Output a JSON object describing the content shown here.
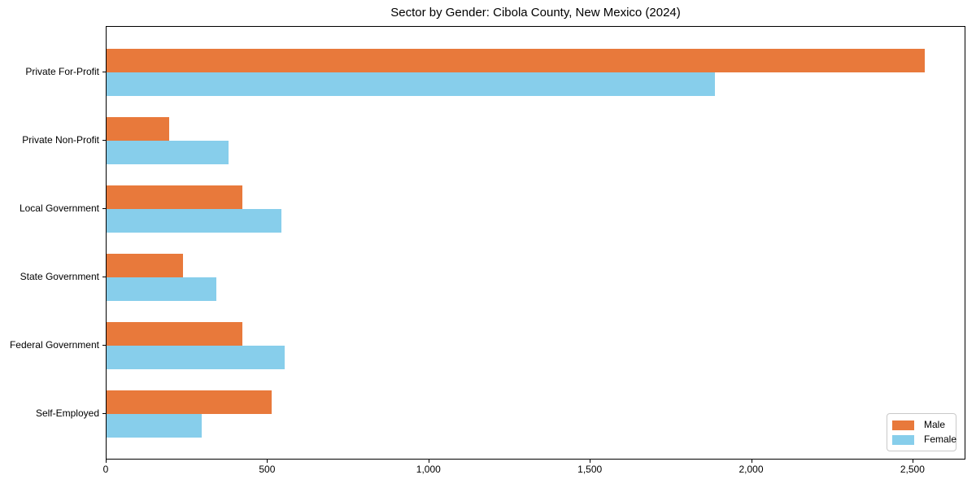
{
  "chart_data": {
    "type": "bar",
    "orientation": "horizontal",
    "title": "Sector by Gender: Cibola County, New Mexico (2024)",
    "categories": [
      "Private For-Profit",
      "Private Non-Profit",
      "Local Government",
      "State Government",
      "Federal Government",
      "Self-Employed"
    ],
    "series": [
      {
        "name": "Male",
        "color": "#e8793b",
        "values": [
          2536,
          193,
          422,
          236,
          421,
          511
        ]
      },
      {
        "name": "Female",
        "color": "#87ceeb",
        "values": [
          1885,
          377,
          541,
          340,
          551,
          294
        ]
      }
    ],
    "xlabel": "",
    "ylabel": "",
    "xlim": [
      0,
      2664
    ],
    "xticks": [
      0,
      500,
      1000,
      1500,
      2000,
      2500
    ],
    "xtick_labels": [
      "0",
      "500",
      "1,000",
      "1,500",
      "2,000",
      "2,500"
    ],
    "grid": false,
    "legend": {
      "position": "lower right",
      "entries": [
        "Male",
        "Female"
      ]
    },
    "colors": {
      "male": "#e8793b",
      "female": "#87ceeb",
      "spine": "#000000",
      "background": "#ffffff",
      "legend_border": "#c9c9c9"
    }
  }
}
